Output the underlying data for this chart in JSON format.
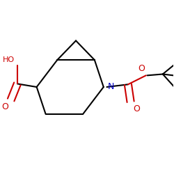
{
  "background_color": "#ffffff",
  "bond_color": "#000000",
  "N_color": "#0000cc",
  "O_color": "#cc0000",
  "line_width": 1.5,
  "figsize": [
    2.5,
    2.5
  ],
  "dpi": 100,
  "xlim": [
    -1.0,
    1.6
  ],
  "ylim": [
    -0.9,
    0.9
  ]
}
